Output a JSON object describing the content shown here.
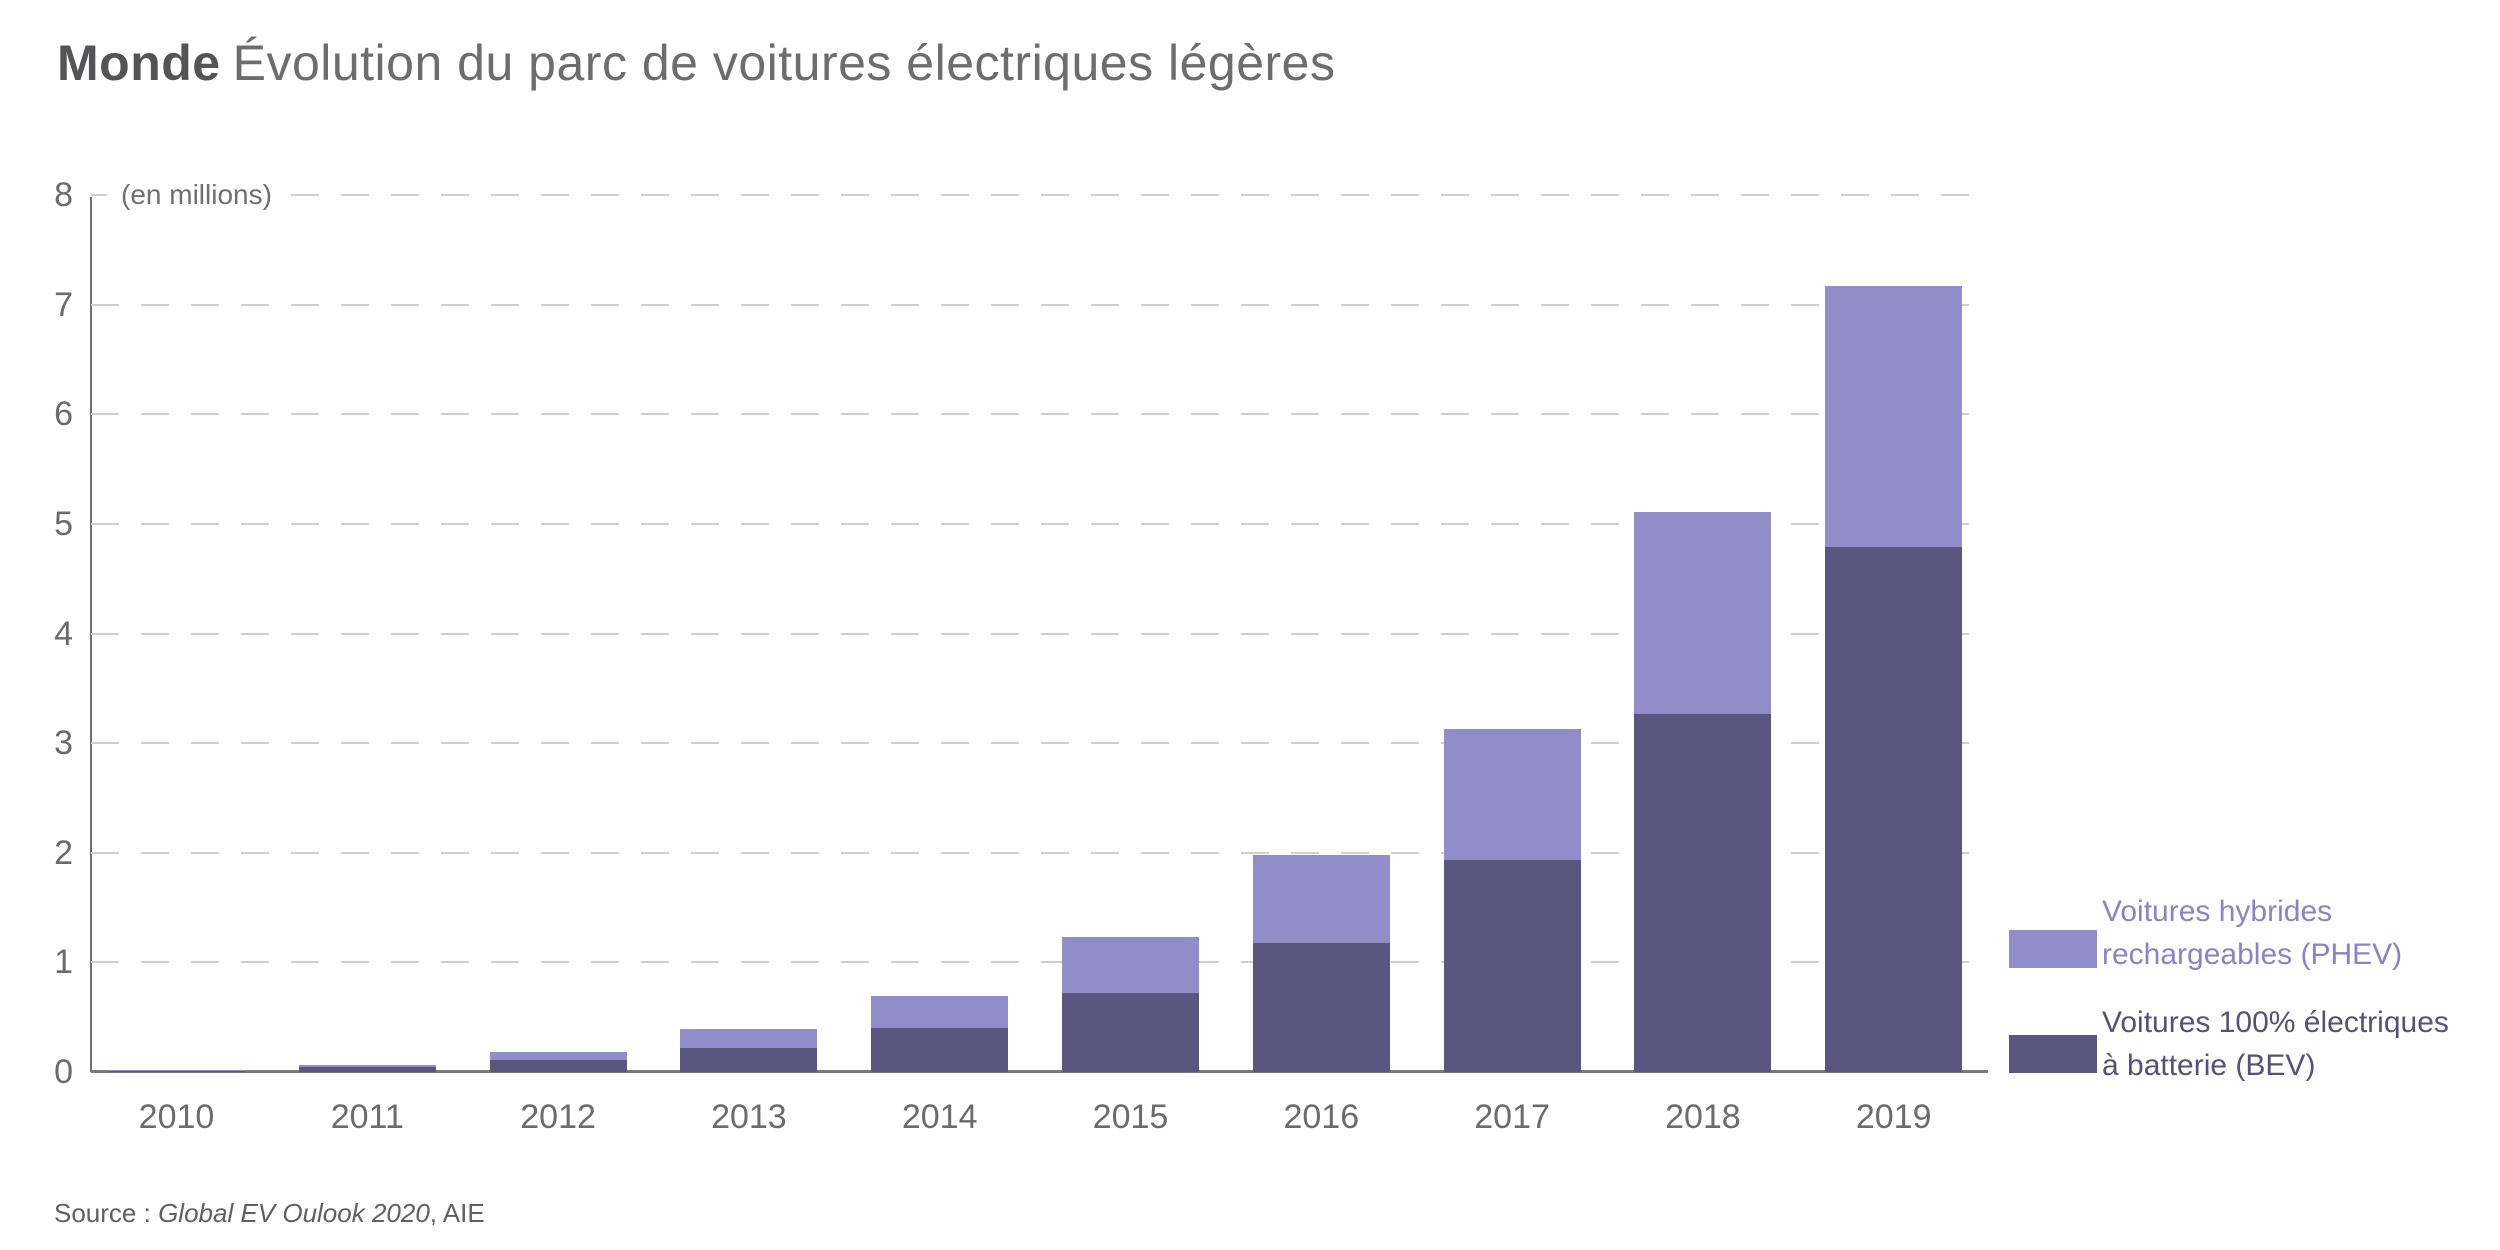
{
  "header": {
    "region": "Monde",
    "title": "Évolution du parc de voitures électriques légères"
  },
  "chart_data": {
    "type": "bar",
    "stacked": true,
    "title": "Monde — Évolution du parc de voitures électriques légères",
    "unit_label": "(en millions)",
    "categories": [
      "2010",
      "2011",
      "2012",
      "2013",
      "2014",
      "2015",
      "2016",
      "2017",
      "2018",
      "2019"
    ],
    "series": [
      {
        "name": "Voitures 100% électriques à batterie (BEV)",
        "key": "bev",
        "color": "#5a5680",
        "values": [
          0.014,
          0.045,
          0.11,
          0.22,
          0.4,
          0.72,
          1.18,
          1.93,
          3.27,
          4.79
        ]
      },
      {
        "name": "Voitures hybrides rechargeables (PHEV)",
        "key": "phev",
        "color": "#928cc8",
        "values": [
          0.003,
          0.016,
          0.07,
          0.17,
          0.29,
          0.51,
          0.8,
          1.2,
          1.84,
          2.38
        ]
      }
    ],
    "totals": [
      0.017,
      0.061,
      0.18,
      0.39,
      0.69,
      1.23,
      1.98,
      3.13,
      5.11,
      7.17
    ],
    "ylim": [
      0,
      8
    ],
    "yticks": [
      0,
      1,
      2,
      3,
      4,
      5,
      6,
      7,
      8
    ],
    "grid": "horizontal-dashed",
    "legend_position": "right"
  },
  "legend": {
    "phev": {
      "line1": "Voitures hybrides",
      "line2": "rechargeables (PHEV)",
      "swatch_color": "#928cc8",
      "text_color": "#8983cb"
    },
    "bev": {
      "line1": "Voitures 100% électriques",
      "line2": "à batterie (BEV)",
      "swatch_color": "#5a5680",
      "text_color": "#55517b"
    }
  },
  "source": {
    "label": "Source : ",
    "work": "Global EV Oulook 2020",
    "suffix": ", AIE"
  }
}
